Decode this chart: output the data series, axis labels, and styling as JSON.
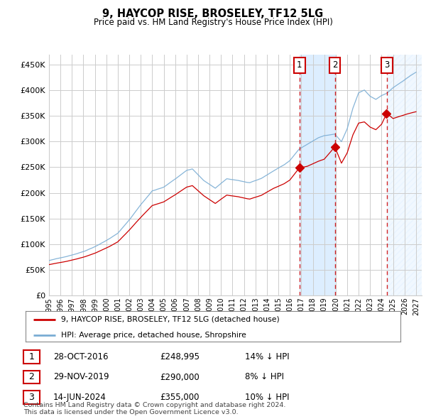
{
  "title": "9, HAYCOP RISE, BROSELEY, TF12 5LG",
  "subtitle": "Price paid vs. HM Land Registry's House Price Index (HPI)",
  "ylabel_ticks": [
    "£0",
    "£50K",
    "£100K",
    "£150K",
    "£200K",
    "£250K",
    "£300K",
    "£350K",
    "£400K",
    "£450K"
  ],
  "ytick_vals": [
    0,
    50000,
    100000,
    150000,
    200000,
    250000,
    300000,
    350000,
    400000,
    450000
  ],
  "ylim": [
    0,
    470000
  ],
  "xlim_start": 1995.0,
  "xlim_end": 2027.5,
  "sale_dates": [
    2016.83,
    2019.92,
    2024.45
  ],
  "sale_prices": [
    248995,
    290000,
    355000
  ],
  "sale_labels": [
    "1",
    "2",
    "3"
  ],
  "sale_date_strs": [
    "28-OCT-2016",
    "29-NOV-2019",
    "14-JUN-2024"
  ],
  "sale_price_strs": [
    "£248,995",
    "£290,000",
    "£355,000"
  ],
  "sale_hpi_strs": [
    "14% ↓ HPI",
    "8% ↓ HPI",
    "10% ↓ HPI"
  ],
  "hpi_color": "#7aadd4",
  "price_color": "#cc0000",
  "vline_color": "#cc0000",
  "shade_color": "#ddeeff",
  "grid_color": "#cccccc",
  "bg_color": "#ffffff",
  "legend_label_price": "9, HAYCOP RISE, BROSELEY, TF12 5LG (detached house)",
  "legend_label_hpi": "HPI: Average price, detached house, Shropshire",
  "footnote": "Contains HM Land Registry data © Crown copyright and database right 2024.\nThis data is licensed under the Open Government Licence v3.0."
}
